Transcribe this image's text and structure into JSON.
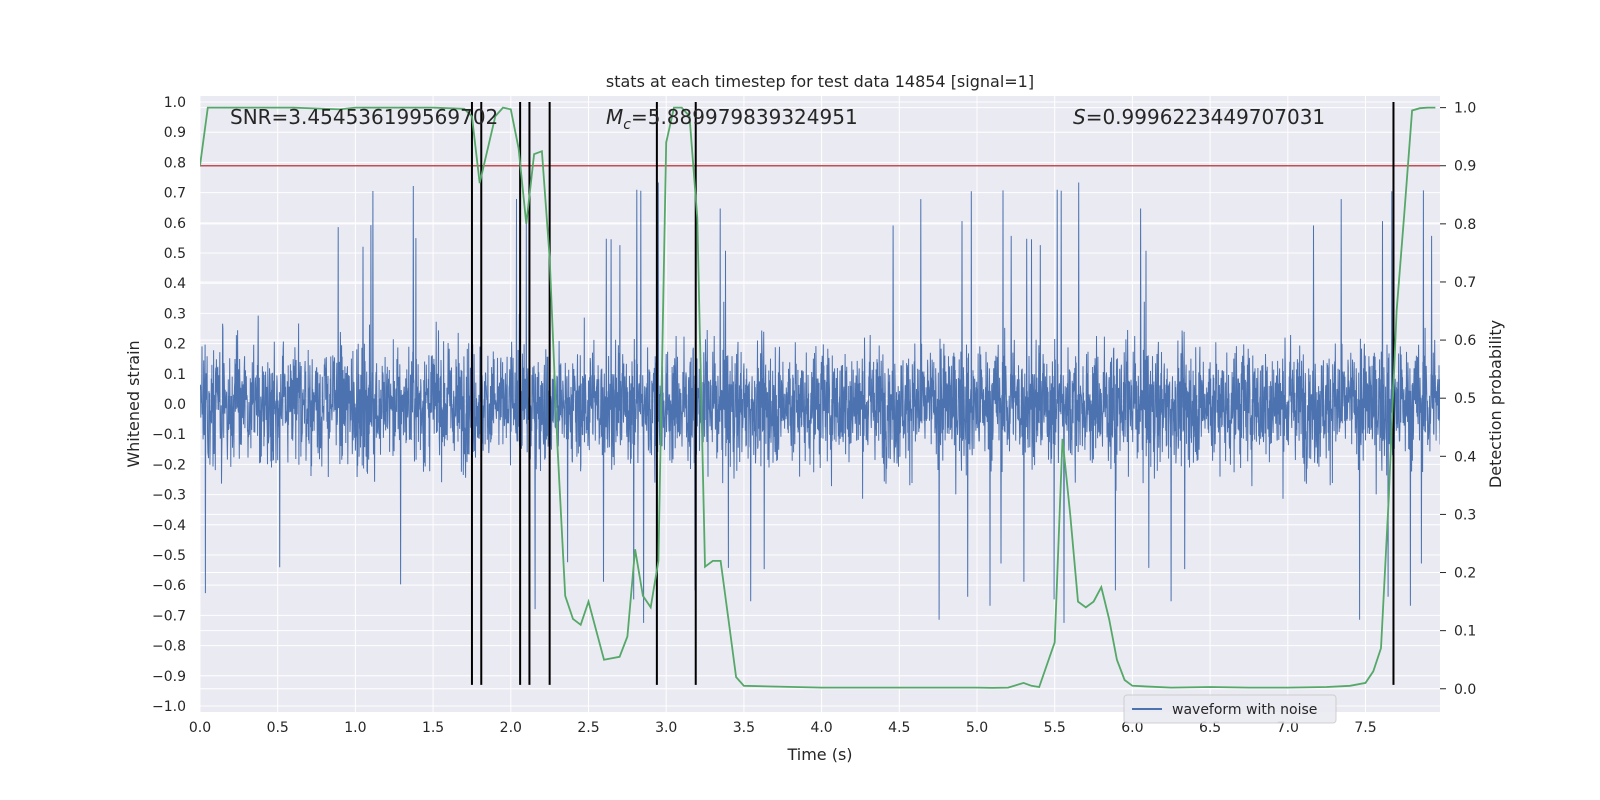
{
  "chart_data": {
    "type": "line",
    "title": "stats at each timestep for test data 14854 [signal=1]",
    "xlabel": "Time (s)",
    "ylabel": "Whitened strain",
    "ylabel_right": "Detection probability",
    "xlim": [
      0.0,
      8.0
    ],
    "ylim": [
      -1.02,
      1.02
    ],
    "ylim_right": [
      -0.04,
      1.02
    ],
    "x_ticks": [
      "0.0",
      "0.5",
      "1.0",
      "1.5",
      "2.0",
      "2.5",
      "3.0",
      "3.5",
      "4.0",
      "4.5",
      "5.0",
      "5.5",
      "6.0",
      "6.5",
      "7.0",
      "7.5"
    ],
    "y_ticks": [
      "−1.0",
      "−0.9",
      "−0.8",
      "−0.7",
      "−0.6",
      "−0.5",
      "−0.4",
      "−0.3",
      "−0.2",
      "−0.1",
      "0.0",
      "0.1",
      "0.2",
      "0.3",
      "0.4",
      "0.5",
      "0.6",
      "0.7",
      "0.8",
      "0.9",
      "1.0"
    ],
    "y_ticks_right": [
      "0.0",
      "0.1",
      "0.2",
      "0.3",
      "0.4",
      "0.5",
      "0.6",
      "0.7",
      "0.8",
      "0.9",
      "1.0"
    ],
    "grid": true,
    "legend_position": "lower-right",
    "annotations": {
      "snr": "SNR=3.454536199569702",
      "mc_symbol": "M",
      "mc_sub": "c",
      "mc_value": "=5.889979839324951",
      "s_symbol": "S",
      "s_value": "=0.9996223449707031"
    },
    "series": [
      {
        "name": "waveform with noise",
        "axis": "left",
        "color": "#4c72b0",
        "description_values": {
          "duration_s": 8.0,
          "typical_range": [
            -0.5,
            0.6
          ],
          "max_peak": 0.8,
          "min_peak": -0.93
        }
      },
      {
        "axis": "right",
        "color": "#55a868",
        "x": [
          0.0,
          0.05,
          0.3,
          0.6,
          0.9,
          1.0,
          1.3,
          1.5,
          1.7,
          1.75,
          1.8,
          1.9,
          1.95,
          2.0,
          2.05,
          2.1,
          2.15,
          2.2,
          2.25,
          2.3,
          2.35,
          2.4,
          2.45,
          2.5,
          2.6,
          2.7,
          2.75,
          2.8,
          2.85,
          2.9,
          2.95,
          3.0,
          3.05,
          3.1,
          3.15,
          3.2,
          3.25,
          3.3,
          3.35,
          3.4,
          3.45,
          3.5,
          4.0,
          4.5,
          5.0,
          5.1,
          5.2,
          5.3,
          5.35,
          5.4,
          5.5,
          5.55,
          5.6,
          5.65,
          5.7,
          5.75,
          5.8,
          5.85,
          5.9,
          5.95,
          6.0,
          6.25,
          6.5,
          6.75,
          7.0,
          7.25,
          7.4,
          7.5,
          7.55,
          7.6,
          7.65,
          7.7,
          7.75,
          7.8,
          7.85,
          7.9,
          7.95
        ],
        "y": [
          0.9,
          1.0,
          1.0,
          1.0,
          0.997,
          1.0,
          1.0,
          1.0,
          0.998,
          0.985,
          0.87,
          0.985,
          1.0,
          0.997,
          0.93,
          0.8,
          0.92,
          0.925,
          0.74,
          0.42,
          0.16,
          0.12,
          0.11,
          0.15,
          0.05,
          0.055,
          0.09,
          0.24,
          0.16,
          0.14,
          0.22,
          0.94,
          1.0,
          1.0,
          0.985,
          0.81,
          0.21,
          0.22,
          0.22,
          0.12,
          0.02,
          0.005,
          0.002,
          0.002,
          0.002,
          0.0015,
          0.002,
          0.01,
          0.005,
          0.003,
          0.08,
          0.43,
          0.3,
          0.15,
          0.14,
          0.15,
          0.175,
          0.12,
          0.05,
          0.015,
          0.005,
          0.002,
          0.003,
          0.002,
          0.002,
          0.003,
          0.005,
          0.01,
          0.03,
          0.07,
          0.33,
          0.65,
          0.82,
          0.995,
          0.999,
          1.0,
          1.0
        ]
      }
    ],
    "threshold_line": {
      "value": 0.9,
      "axis": "right",
      "color": "#c44e52"
    },
    "event_markers_x": [
      1.75,
      1.81,
      2.06,
      2.12,
      2.25,
      2.94,
      3.19,
      7.68
    ],
    "event_markers_y_range": [
      -0.93,
      1.0
    ]
  }
}
